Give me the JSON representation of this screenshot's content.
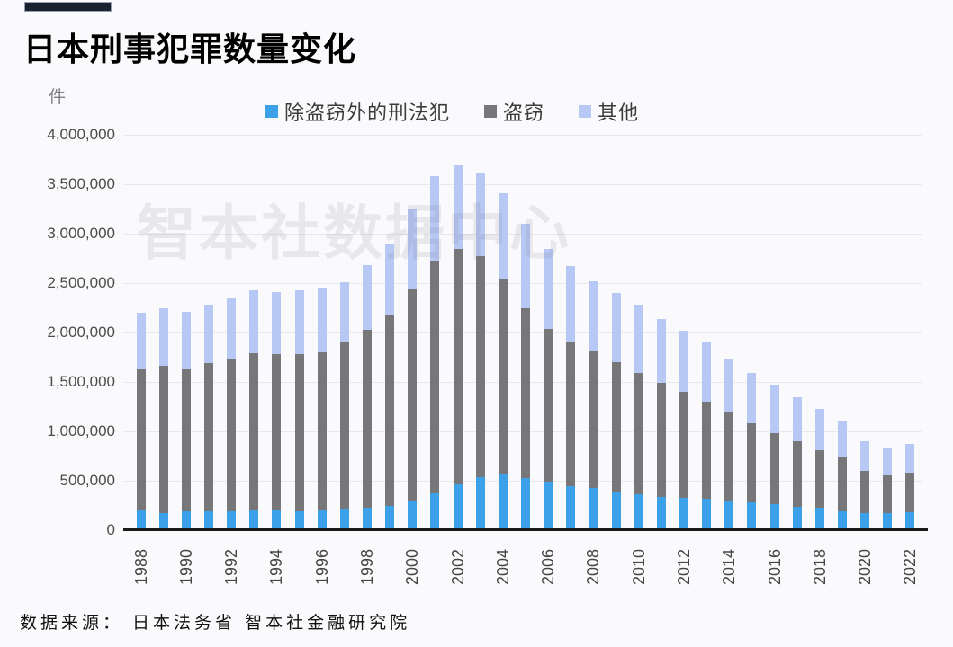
{
  "header": {
    "title": "日本刑事犯罪数量变化",
    "unit_label": "件"
  },
  "watermark": {
    "text": "智本社数据中心"
  },
  "source": {
    "text": "数据来源：  日本法务省  智本社金融研究院"
  },
  "colors": {
    "accent_bar": "#18222f",
    "background": "#fafafc",
    "gridline": "#e8e8eb",
    "axis_line": "#1a1a1a"
  },
  "chart_data": {
    "type": "bar",
    "stacked": true,
    "title": "日本刑事犯罪数量变化",
    "ylabel": "件",
    "ylim": [
      0,
      4000000
    ],
    "ytick_step": 500000,
    "grid": true,
    "legend_position": "top",
    "categories": [
      1988,
      1989,
      1990,
      1991,
      1992,
      1993,
      1994,
      1995,
      1996,
      1997,
      1998,
      1999,
      2000,
      2001,
      2002,
      2003,
      2004,
      2005,
      2006,
      2007,
      2008,
      2009,
      2010,
      2011,
      2012,
      2013,
      2014,
      2015,
      2016,
      2017,
      2018,
      2019,
      2020,
      2021,
      2022
    ],
    "series": [
      {
        "name": "除盗窃外的刑法犯",
        "color": "#3ca1e8",
        "values": [
          205000,
          175000,
          190000,
          190000,
          195000,
          200000,
          205000,
          190000,
          205000,
          215000,
          230000,
          245000,
          295000,
          375000,
          460000,
          535000,
          565000,
          530000,
          495000,
          450000,
          430000,
          385000,
          360000,
          340000,
          330000,
          315000,
          300000,
          280000,
          260000,
          240000,
          225000,
          195000,
          175000,
          170000,
          180000
        ]
      },
      {
        "name": "盗窃",
        "color": "#77777a",
        "values": [
          1425000,
          1485000,
          1440000,
          1500000,
          1535000,
          1590000,
          1575000,
          1590000,
          1595000,
          1685000,
          1800000,
          1925000,
          2145000,
          2355000,
          2390000,
          2235000,
          1985000,
          1720000,
          1545000,
          1450000,
          1380000,
          1315000,
          1230000,
          1150000,
          1070000,
          985000,
          890000,
          800000,
          720000,
          660000,
          585000,
          545000,
          425000,
          385000,
          400000
        ]
      },
      {
        "name": "其他",
        "color": "#b8c8f4",
        "values": [
          570000,
          590000,
          580000,
          590000,
          620000,
          640000,
          630000,
          650000,
          650000,
          610000,
          650000,
          720000,
          810000,
          850000,
          840000,
          850000,
          860000,
          850000,
          810000,
          770000,
          710000,
          700000,
          690000,
          650000,
          620000,
          600000,
          550000,
          510000,
          490000,
          450000,
          420000,
          360000,
          300000,
          285000,
          290000
        ]
      }
    ],
    "yticks": [
      {
        "value": 0,
        "label": "0"
      },
      {
        "value": 500000,
        "label": "500,000"
      },
      {
        "value": 1000000,
        "label": "1,000,000"
      },
      {
        "value": 1500000,
        "label": "1,500,000"
      },
      {
        "value": 2000000,
        "label": "2,000,000"
      },
      {
        "value": 2500000,
        "label": "2,500,000"
      },
      {
        "value": 3000000,
        "label": "3,000,000"
      },
      {
        "value": 3500000,
        "label": "3,500,000"
      },
      {
        "value": 4000000,
        "label": "4,000,000"
      }
    ],
    "xtick_labels": [
      "1988",
      "1990",
      "1992",
      "1994",
      "1996",
      "1998",
      "2000",
      "2002",
      "2004",
      "2006",
      "2008",
      "2010",
      "2012",
      "2014",
      "2016",
      "2018",
      "2020",
      "2022"
    ]
  }
}
